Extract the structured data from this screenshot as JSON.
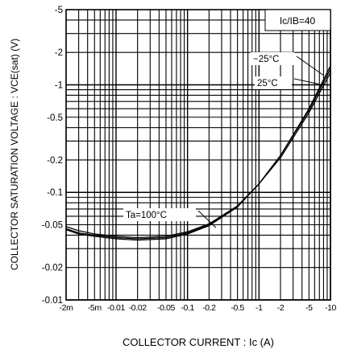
{
  "chart_data": {
    "type": "line",
    "title": "",
    "xlabel": "COLLECTOR  CURRENT : Ic (A)",
    "ylabel": "COLLECTOR  SATURATION  VOLTAGE : VCE(sat) (V)",
    "x_scale": "log",
    "y_scale": "log",
    "xlim": [
      -0.002,
      -10
    ],
    "ylim": [
      -0.01,
      -5
    ],
    "x_ticks": [
      -0.002,
      -0.005,
      -0.01,
      -0.02,
      -0.05,
      -0.1,
      -0.2,
      -0.5,
      -1,
      -2,
      -5,
      -10
    ],
    "x_tick_labels": [
      "-2m",
      "-5m",
      "-0.01",
      "-0.02",
      "-0.05",
      "-0.1",
      "-0.2",
      "-0.5",
      "-1",
      "-2",
      "-5",
      "-10"
    ],
    "y_ticks": [
      -5,
      -2,
      -1,
      -0.5,
      -0.2,
      -0.1,
      -0.05,
      -0.02,
      -0.01
    ],
    "y_tick_labels": [
      "-5",
      "-2",
      "-1",
      "-0.5",
      "-0.2",
      "-0.1",
      "-0.05",
      "-0.02",
      "-0.01"
    ],
    "grid": true,
    "condition_label": "Ic/IB=40",
    "series": [
      {
        "name": "Ta=100°C",
        "x": [
          -0.002,
          -0.003,
          -0.005,
          -0.01,
          -0.02,
          -0.05,
          -0.1,
          -0.2,
          -0.5,
          -1,
          -2,
          -5,
          -10
        ],
        "y": [
          -0.048,
          -0.044,
          -0.041,
          -0.039,
          -0.038,
          -0.039,
          -0.043,
          -0.051,
          -0.075,
          -0.12,
          -0.21,
          -0.55,
          -1.3
        ]
      },
      {
        "name": "25°C",
        "x": [
          -0.002,
          -0.003,
          -0.005,
          -0.01,
          -0.02,
          -0.05,
          -0.1,
          -0.2,
          -0.5,
          -1,
          -2,
          -5,
          -10
        ],
        "y": [
          -0.046,
          -0.042,
          -0.04,
          -0.038,
          -0.037,
          -0.038,
          -0.042,
          -0.05,
          -0.074,
          -0.12,
          -0.22,
          -0.58,
          -1.4
        ]
      },
      {
        "name": "−25°C",
        "x": [
          -0.002,
          -0.003,
          -0.005,
          -0.01,
          -0.02,
          -0.05,
          -0.1,
          -0.2,
          -0.5,
          -1,
          -2,
          -5,
          -10
        ],
        "y": [
          -0.045,
          -0.041,
          -0.039,
          -0.037,
          -0.036,
          -0.037,
          -0.041,
          -0.049,
          -0.073,
          -0.12,
          -0.22,
          -0.6,
          -1.5
        ]
      }
    ]
  }
}
